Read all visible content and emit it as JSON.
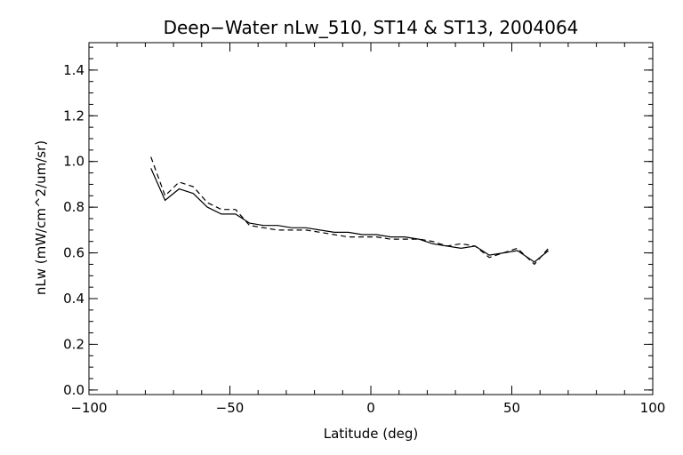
{
  "chart_data": {
    "type": "line",
    "title": "Deep−Water nLw_510, ST14 & ST13, 2004064",
    "xlabel": "Latitude (deg)",
    "ylabel": "nLw (mW/cm^2/um/sr)",
    "xlim": [
      -100,
      100
    ],
    "ylim": [
      -0.02,
      1.52
    ],
    "x_ticks": [
      -100,
      -50,
      0,
      50,
      100
    ],
    "x_tick_labels": [
      "−100",
      "−50",
      "0",
      "50",
      "100"
    ],
    "y_ticks": [
      0.0,
      0.2,
      0.4,
      0.6,
      0.8,
      1.0,
      1.2,
      1.4
    ],
    "y_tick_labels": [
      "0.0",
      "0.2",
      "0.4",
      "0.6",
      "0.8",
      "1.0",
      "1.2",
      "1.4"
    ],
    "grid": false,
    "series": [
      {
        "style": "solid",
        "x": [
          -78,
          -73,
          -68,
          -63,
          -58,
          -53,
          -48,
          -43,
          -38,
          -33,
          -28,
          -23,
          -18,
          -13,
          -8,
          -3,
          2,
          7,
          12,
          17,
          22,
          27,
          32,
          37,
          42,
          47,
          52,
          58,
          63
        ],
        "y": [
          0.97,
          0.83,
          0.88,
          0.86,
          0.8,
          0.77,
          0.77,
          0.73,
          0.72,
          0.72,
          0.71,
          0.71,
          0.7,
          0.69,
          0.69,
          0.68,
          0.68,
          0.67,
          0.67,
          0.66,
          0.64,
          0.63,
          0.62,
          0.63,
          0.59,
          0.6,
          0.61,
          0.56,
          0.61
        ]
      },
      {
        "style": "dashed",
        "x": [
          -78,
          -73,
          -68,
          -63,
          -58,
          -53,
          -48,
          -43,
          -38,
          -33,
          -28,
          -23,
          -18,
          -13,
          -8,
          -3,
          2,
          7,
          12,
          17,
          22,
          27,
          32,
          37,
          42,
          47,
          52,
          58,
          63
        ],
        "y": [
          1.02,
          0.85,
          0.91,
          0.89,
          0.82,
          0.79,
          0.79,
          0.72,
          0.71,
          0.7,
          0.7,
          0.7,
          0.69,
          0.68,
          0.67,
          0.67,
          0.67,
          0.66,
          0.66,
          0.66,
          0.65,
          0.63,
          0.64,
          0.63,
          0.58,
          0.6,
          0.62,
          0.55,
          0.62
        ]
      }
    ]
  }
}
